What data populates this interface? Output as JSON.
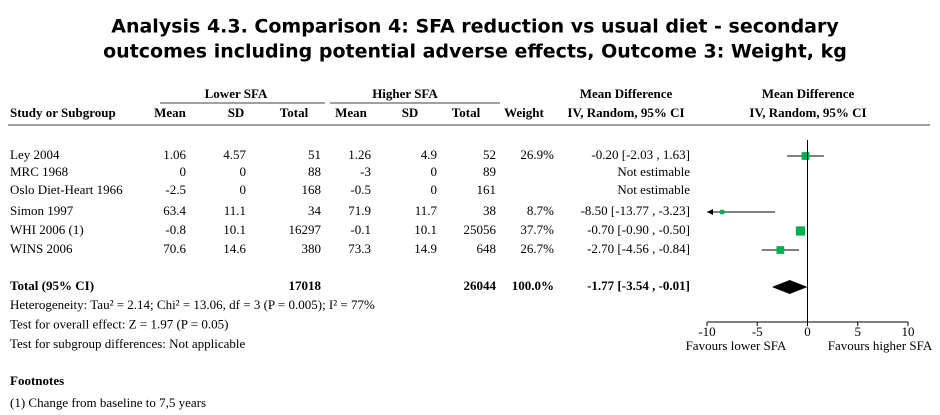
{
  "chart_data": {
    "type": "forest",
    "title_lines": [
      "Analysis 4.3.   Comparison 4: SFA reduction vs usual diet - secondary",
      "outcomes including potential adverse effects, Outcome 3: Weight, kg"
    ],
    "group_headers": [
      "Lower SFA",
      "Higher SFA",
      "Mean Difference",
      "Mean Difference"
    ],
    "column_headers": [
      "Study or Subgroup",
      "Mean",
      "SD",
      "Total",
      "Mean",
      "SD",
      "Total",
      "Weight",
      "IV, Random, 95% CI",
      "IV, Random, 95% CI"
    ],
    "rows": [
      {
        "study": "Ley 2004",
        "mean1": 1.06,
        "sd1": 4.57,
        "total1": 51,
        "mean2": 1.26,
        "sd2": 4.9,
        "total2": 52,
        "weight": 26.9,
        "weight_label": "26.9%",
        "md": -0.2,
        "ci_low": -2.03,
        "ci_high": 1.63,
        "ci_label": "-0.20 [-2.03 , 1.63]"
      },
      {
        "study": "MRC 1968",
        "mean1": 0,
        "sd1": 0,
        "total1": 88,
        "mean2": -3,
        "sd2": 0,
        "total2": 89,
        "weight": null,
        "weight_label": null,
        "md": null,
        "ci_low": null,
        "ci_high": null,
        "ci_label": "Not estimable"
      },
      {
        "study": "Oslo Diet-Heart 1966",
        "mean1": -2.5,
        "sd1": 0,
        "total1": 168,
        "mean2": -0.5,
        "sd2": 0,
        "total2": 161,
        "weight": null,
        "weight_label": null,
        "md": null,
        "ci_low": null,
        "ci_high": null,
        "ci_label": "Not estimable"
      },
      {
        "study": "Simon 1997",
        "mean1": 63.4,
        "sd1": 11.1,
        "total1": 34,
        "mean2": 71.9,
        "sd2": 11.7,
        "total2": 38,
        "weight": 8.7,
        "weight_label": "8.7%",
        "md": -8.5,
        "ci_low": -13.77,
        "ci_high": -3.23,
        "ci_label": "-8.50 [-13.77 , -3.23]"
      },
      {
        "study": "WHI 2006 (1)",
        "mean1": -0.8,
        "sd1": 10.1,
        "total1": 16297,
        "mean2": -0.1,
        "sd2": 10.1,
        "total2": 25056,
        "weight": 37.7,
        "weight_label": "37.7%",
        "md": -0.7,
        "ci_low": -0.9,
        "ci_high": -0.5,
        "ci_label": "-0.70 [-0.90 , -0.50]"
      },
      {
        "study": "WINS 2006",
        "mean1": 70.6,
        "sd1": 14.6,
        "total1": 380,
        "mean2": 73.3,
        "sd2": 14.9,
        "total2": 648,
        "weight": 26.7,
        "weight_label": "26.7%",
        "md": -2.7,
        "ci_low": -4.56,
        "ci_high": -0.84,
        "ci_label": "-2.70 [-4.56 , -0.84]"
      }
    ],
    "total": {
      "label": "Total (95% CI)",
      "total1": 17018,
      "total2": 26044,
      "weight": 100,
      "weight_label": "100.0%",
      "md": -1.77,
      "ci_low": -3.54,
      "ci_high": -0.01,
      "ci_label": "-1.77 [-3.54 , -0.01]"
    },
    "notes": [
      "Heterogeneity: Tau² = 2.14; Chi² = 13.06, df = 3 (P = 0.005); I² = 77%",
      "Test for overall effect: Z = 1.97 (P = 0.05)",
      "Test for subgroup differences: Not applicable"
    ],
    "xlim": [
      -10,
      10
    ],
    "xticks": [
      -10,
      -5,
      0,
      5,
      10
    ],
    "favours": [
      "Favours lower SFA",
      "Favours higher SFA"
    ],
    "marker_color": "#00b050",
    "footnotes_title": "Footnotes",
    "footnotes": [
      "(1) Change from baseline to 7,5 years"
    ]
  }
}
